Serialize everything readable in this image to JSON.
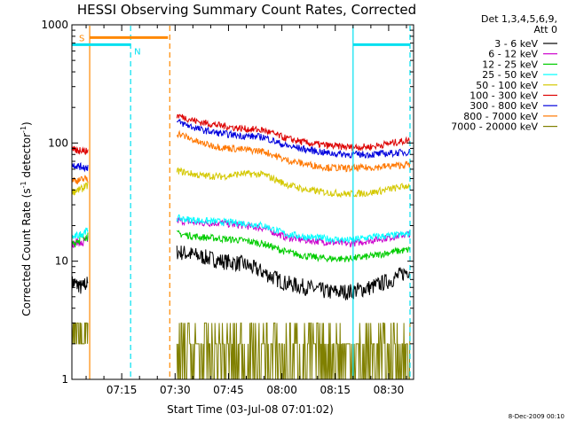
{
  "chart_data": {
    "type": "line",
    "title": "HESSI Observing Summary Count Rates, Corrected",
    "xlabel": "Start Time (03-Jul-08 07:01:02)",
    "ylabel_main": "Corrected Count Rate (s",
    "ylabel_sup1": "-1",
    "ylabel_mid": " detector",
    "ylabel_sup2": "-1",
    "ylabel_end": ")",
    "yscale": "log",
    "ylim": [
      1,
      1000
    ],
    "yticks": [
      {
        "value": 1,
        "label": "1"
      },
      {
        "value": 10,
        "label": "10"
      },
      {
        "value": 100,
        "label": "100"
      },
      {
        "value": 1000,
        "label": "1000"
      }
    ],
    "xlim_minutes": [
      421,
      517
    ],
    "xticks": [
      {
        "minute": 435,
        "label": "07:15"
      },
      {
        "minute": 450,
        "label": "07:30"
      },
      {
        "minute": 465,
        "label": "07:45"
      },
      {
        "minute": 480,
        "label": "08:00"
      },
      {
        "minute": 495,
        "label": "08:15"
      },
      {
        "minute": 510,
        "label": "08:30"
      }
    ],
    "legend": {
      "header1": "Det 1,3,4,5,6,9,",
      "header2": "Att 0",
      "placement": "right"
    },
    "series": [
      {
        "name": "3 - 6 keV",
        "color": "#000000",
        "pre": [
          6.5,
          6.3,
          6.0,
          6.4,
          6.2
        ],
        "post": [
          [
            451,
            12
          ],
          [
            457,
            11
          ],
          [
            463,
            10
          ],
          [
            469,
            9.5
          ],
          [
            475,
            8
          ],
          [
            481,
            6.5
          ],
          [
            487,
            6
          ],
          [
            493,
            5.5
          ],
          [
            499,
            5.5
          ],
          [
            505,
            6
          ],
          [
            511,
            7
          ],
          [
            516,
            8.5
          ]
        ]
      },
      {
        "name": "6 - 12 keV",
        "color": "#cc00cc",
        "pre": [
          14,
          14.5,
          14,
          15,
          16
        ],
        "post": [
          [
            451,
            22
          ],
          [
            457,
            21
          ],
          [
            463,
            21
          ],
          [
            469,
            20
          ],
          [
            475,
            19
          ],
          [
            481,
            16
          ],
          [
            487,
            15
          ],
          [
            493,
            14.5
          ],
          [
            499,
            14
          ],
          [
            505,
            15
          ],
          [
            511,
            16
          ],
          [
            516,
            17
          ]
        ]
      },
      {
        "name": "12 - 25 keV",
        "color": "#00cc00",
        "pre": [
          14,
          15,
          16,
          16,
          17
        ],
        "post": [
          [
            451,
            17
          ],
          [
            457,
            16
          ],
          [
            463,
            15.5
          ],
          [
            469,
            15
          ],
          [
            475,
            14
          ],
          [
            481,
            12
          ],
          [
            487,
            11
          ],
          [
            493,
            10.5
          ],
          [
            499,
            10.5
          ],
          [
            505,
            11
          ],
          [
            511,
            12
          ],
          [
            516,
            12.5
          ]
        ]
      },
      {
        "name": "25 - 50 keV",
        "color": "#00ffff",
        "pre": [
          16,
          16.5,
          17,
          18,
          19
        ],
        "post": [
          [
            451,
            23
          ],
          [
            457,
            22
          ],
          [
            463,
            21.5
          ],
          [
            469,
            21
          ],
          [
            475,
            20
          ],
          [
            481,
            17
          ],
          [
            487,
            16
          ],
          [
            493,
            15.5
          ],
          [
            499,
            15
          ],
          [
            505,
            16
          ],
          [
            511,
            16.5
          ],
          [
            516,
            17
          ]
        ]
      },
      {
        "name": "50 - 100 keV",
        "color": "#d4c800",
        "pre": [
          39,
          40,
          41,
          43,
          45
        ],
        "post": [
          [
            451,
            58
          ],
          [
            457,
            53
          ],
          [
            463,
            52
          ],
          [
            469,
            55
          ],
          [
            475,
            54
          ],
          [
            481,
            45
          ],
          [
            487,
            40
          ],
          [
            493,
            38
          ],
          [
            499,
            37
          ],
          [
            505,
            38
          ],
          [
            511,
            41
          ],
          [
            516,
            44
          ]
        ]
      },
      {
        "name": "100 - 300 keV",
        "color": "#dd0000",
        "pre": [
          87,
          86,
          88,
          85,
          86
        ],
        "post": [
          [
            451,
            170
          ],
          [
            457,
            150
          ],
          [
            463,
            140
          ],
          [
            469,
            132
          ],
          [
            475,
            128
          ],
          [
            481,
            110
          ],
          [
            487,
            100
          ],
          [
            493,
            95
          ],
          [
            499,
            92
          ],
          [
            505,
            93
          ],
          [
            511,
            100
          ],
          [
            516,
            106
          ]
        ]
      },
      {
        "name": "300 - 800 keV",
        "color": "#0000dd",
        "pre": [
          65,
          64,
          63,
          62,
          64
        ],
        "post": [
          [
            451,
            150
          ],
          [
            457,
            130
          ],
          [
            463,
            120
          ],
          [
            469,
            115
          ],
          [
            475,
            112
          ],
          [
            481,
            95
          ],
          [
            487,
            88
          ],
          [
            493,
            82
          ],
          [
            499,
            80
          ],
          [
            505,
            80
          ],
          [
            511,
            82
          ],
          [
            516,
            84
          ]
        ]
      },
      {
        "name": "800 - 7000 keV",
        "color": "#ff7700",
        "pre": [
          49,
          48,
          49,
          50,
          47
        ],
        "post": [
          [
            451,
            120
          ],
          [
            457,
            100
          ],
          [
            463,
            92
          ],
          [
            469,
            88
          ],
          [
            475,
            85
          ],
          [
            481,
            72
          ],
          [
            487,
            66
          ],
          [
            493,
            62
          ],
          [
            499,
            61
          ],
          [
            505,
            62
          ],
          [
            511,
            64
          ],
          [
            516,
            66
          ]
        ]
      },
      {
        "name": "7000 - 20000 keV",
        "color": "#808000",
        "pre": [
          3,
          2,
          3,
          2,
          3
        ],
        "post": [
          [
            451,
            2
          ],
          [
            457,
            2
          ],
          [
            463,
            2
          ],
          [
            469,
            3
          ],
          [
            475,
            2
          ],
          [
            481,
            2
          ],
          [
            487,
            2
          ],
          [
            493,
            3
          ],
          [
            499,
            2
          ],
          [
            505,
            2
          ],
          [
            511,
            3
          ],
          [
            516,
            3
          ]
        ]
      }
    ],
    "pre_window_minutes": [
      421,
      425.5
    ],
    "post_window_minutes": [
      450.5,
      516
    ],
    "annotations": {
      "saa_label": "S",
      "night_label": "N",
      "saa_color": "#ff8800",
      "night_color": "#00e0f0",
      "saa_bar_minutes": [
        426,
        448
      ],
      "saa_edges_minutes": [
        426,
        448.5
      ],
      "night_bar1_minutes": [
        421,
        437.5
      ],
      "night_bar2_minutes": [
        500,
        516
      ],
      "night_edges_minutes": [
        437.5,
        500,
        516
      ],
      "saa_bar_level": 780,
      "night_bar_level": 680
    }
  },
  "footer": {
    "date_stamp": "8-Dec-2009 00:10"
  }
}
